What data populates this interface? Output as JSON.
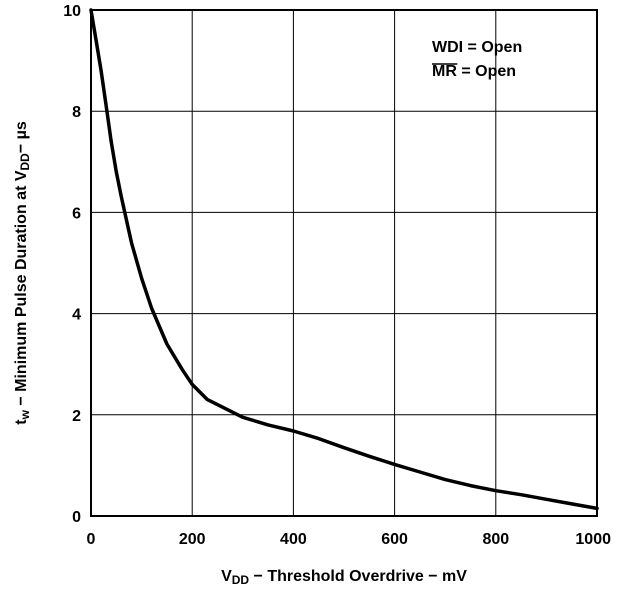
{
  "chart_data": {
    "type": "line",
    "title": "",
    "xlabel": {
      "parts": [
        {
          "text": "V",
          "sub": false
        },
        {
          "text": "DD",
          "sub": true
        },
        {
          "text": " − Threshold Overdrive − mV",
          "sub": false
        }
      ]
    },
    "ylabel": {
      "parts": [
        {
          "text": "t",
          "sub": false
        },
        {
          "text": "w",
          "sub": true
        },
        {
          "text": " − Minimum Pulse Duration at V",
          "sub": false
        },
        {
          "text": "DD",
          "sub": true
        },
        {
          "text": "− µs",
          "sub": false
        }
      ]
    },
    "xlim": [
      0,
      1000
    ],
    "ylim": [
      0,
      10
    ],
    "xticks": [
      0,
      200,
      400,
      600,
      800,
      1000
    ],
    "yticks": [
      0,
      2,
      4,
      6,
      8,
      10
    ],
    "grid": true,
    "annotations": [
      {
        "text": "WDI = Open",
        "overline": false
      },
      {
        "text": "MR",
        "overline": true,
        "suffix": " = Open"
      }
    ],
    "series": [
      {
        "x": [
          0,
          10,
          20,
          30,
          40,
          50,
          60,
          80,
          100,
          120,
          150,
          180,
          200,
          230,
          260,
          300,
          350,
          400,
          450,
          500,
          550,
          600,
          650,
          700,
          750,
          800,
          850,
          900,
          950,
          1000
        ],
        "y": [
          10,
          9.4,
          8.8,
          8.1,
          7.4,
          6.8,
          6.3,
          5.4,
          4.7,
          4.1,
          3.4,
          2.9,
          2.6,
          2.3,
          2.15,
          1.95,
          1.8,
          1.68,
          1.53,
          1.35,
          1.18,
          1.02,
          0.87,
          0.72,
          0.6,
          0.5,
          0.42,
          0.33,
          0.24,
          0.15
        ]
      }
    ]
  }
}
